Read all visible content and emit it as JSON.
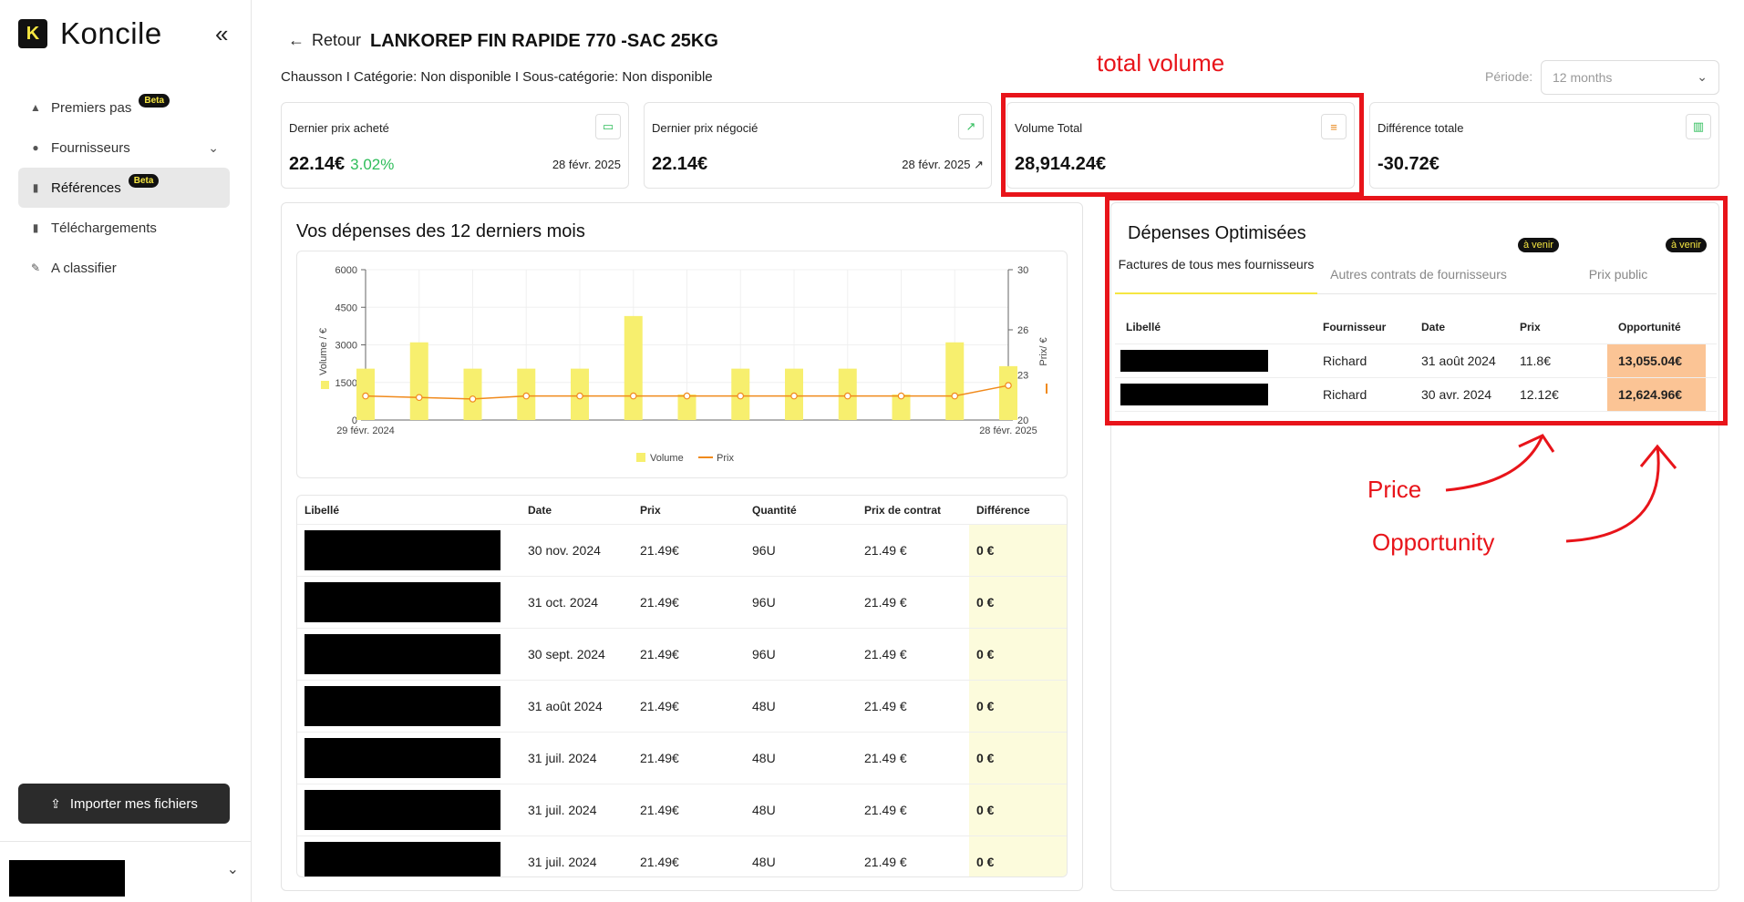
{
  "app": {
    "brand": "Koncile",
    "logo_letter": "K"
  },
  "sidebar": {
    "items": [
      {
        "label": "Premiers pas",
        "icon": "graduation-cap-icon",
        "badge": "Beta"
      },
      {
        "label": "Fournisseurs",
        "icon": "users-icon"
      },
      {
        "label": "Références",
        "icon": "document-icon",
        "badge": "Beta",
        "active": true
      },
      {
        "label": "Téléchargements",
        "icon": "document-icon"
      },
      {
        "label": "A classifier",
        "icon": "pencil-icon"
      }
    ],
    "import_label": "Importer mes fichiers"
  },
  "header": {
    "back_label": "Retour",
    "title": "LANKOREP FIN RAPIDE 770 -SAC 25KG",
    "meta": "Chausson I  Catégorie: Non disponible I  Sous-catégorie: Non disponible",
    "period_label": "Période:",
    "period_value": "12 months"
  },
  "kpis": [
    {
      "label": "Dernier prix acheté",
      "value": "22.14€",
      "pct": "3.02%",
      "date": "28 févr. 2025",
      "icon": "money-icon"
    },
    {
      "label": "Dernier prix négocié",
      "value": "22.14€",
      "date": "28 févr. 2025",
      "icon": "trend-up-icon"
    },
    {
      "label": "Volume Total",
      "value": "28,914.24€",
      "icon": "coins-icon"
    },
    {
      "label": "Différence totale",
      "value": "-30.72€",
      "icon": "bar-chart-icon"
    }
  ],
  "annotations": {
    "total_volume": "total volume",
    "price": "Price",
    "opportunity": "Opportunity"
  },
  "chart_title": "Vos dépenses des 12 derniers mois",
  "chart_data": {
    "type": "bar",
    "categories": [
      "29 févr. 2024",
      "",
      "",
      "",
      "",
      "",
      "",
      "",
      "",
      "",
      "",
      "",
      "28 févr. 2025"
    ],
    "series": [
      {
        "name": "Volume",
        "type": "bar",
        "axis": "left",
        "values": [
          2050,
          3100,
          2050,
          2050,
          2050,
          4150,
          1020,
          2050,
          2050,
          2050,
          1020,
          3100,
          2150
        ]
      },
      {
        "name": "Prix",
        "type": "line",
        "axis": "right",
        "values": [
          21.6,
          21.5,
          21.4,
          21.6,
          21.6,
          21.6,
          21.6,
          21.6,
          21.6,
          21.6,
          21.6,
          21.6,
          22.3
        ]
      }
    ],
    "yticks_left": [
      "0",
      "1500",
      "3000",
      "4500",
      "6000"
    ],
    "yticks_right": [
      "20",
      "23",
      "26",
      "30"
    ],
    "ylabel": "Volume / €",
    "y2label": "Prix/ €",
    "ylim": [
      0,
      6000
    ],
    "y2lim": [
      20,
      30
    ],
    "legend_position": "bottom-center"
  },
  "table": {
    "headers": [
      "Libellé",
      "Date",
      "Prix",
      "Quantité",
      "Prix de contrat",
      "Différence"
    ],
    "rows": [
      {
        "date": "30 nov. 2024",
        "prix": "21.49€",
        "qte": "96U",
        "contrat": "21.49 €",
        "diff": "0 €"
      },
      {
        "date": "31 oct. 2024",
        "prix": "21.49€",
        "qte": "96U",
        "contrat": "21.49 €",
        "diff": "0 €"
      },
      {
        "date": "30 sept. 2024",
        "prix": "21.49€",
        "qte": "96U",
        "contrat": "21.49 €",
        "diff": "0 €"
      },
      {
        "date": "31 août 2024",
        "prix": "21.49€",
        "qte": "48U",
        "contrat": "21.49 €",
        "diff": "0 €"
      },
      {
        "date": "31 juil. 2024",
        "prix": "21.49€",
        "qte": "48U",
        "contrat": "21.49 €",
        "diff": "0 €"
      },
      {
        "date": "31 juil. 2024",
        "prix": "21.49€",
        "qte": "48U",
        "contrat": "21.49 €",
        "diff": "0 €"
      },
      {
        "date": "31 juil. 2024",
        "prix": "21.49€",
        "qte": "48U",
        "contrat": "21.49 €",
        "diff": "0 €"
      }
    ]
  },
  "optimized": {
    "title": "Dépenses Optimisées",
    "tabs": [
      "Factures de tous mes fournisseurs",
      "Autres contrats de fournisseurs",
      "Prix public"
    ],
    "soon": "à venir",
    "headers": [
      "Libellé",
      "Fournisseur",
      "Date",
      "Prix",
      "Opportunité"
    ],
    "rows": [
      {
        "fournisseur": "Richard",
        "date": "31 août 2024",
        "prix": "11.8€",
        "opp": "13,055.04€"
      },
      {
        "fournisseur": "Richard",
        "date": "30 avr. 2024",
        "prix": "12.12€",
        "opp": "12,624.96€"
      }
    ]
  }
}
